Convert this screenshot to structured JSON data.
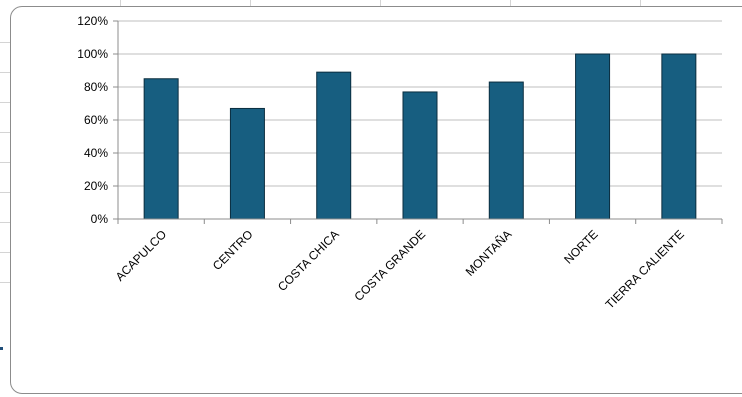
{
  "chart_data": {
    "type": "bar",
    "categories": [
      "ACAPULCO",
      "CENTRO",
      "COSTA CHICA",
      "COSTA GRANDE",
      "MONTAÑA",
      "NORTE",
      "TIERRA CALIENTE"
    ],
    "values": [
      85,
      67,
      89,
      77,
      83,
      100,
      100
    ],
    "y_unit": "%",
    "ylim": [
      0,
      120
    ],
    "y_ticks": [
      "0%",
      "20%",
      "40%",
      "60%",
      "80%",
      "100%",
      "120%"
    ],
    "title": "",
    "xlabel": "",
    "ylabel": "",
    "grid": true,
    "legend": "none",
    "colors": {
      "bar": "#175e80",
      "bar_stroke": "#0b2e3f",
      "grid": "#bfbfbf",
      "axis": "#8c8c8c"
    }
  }
}
